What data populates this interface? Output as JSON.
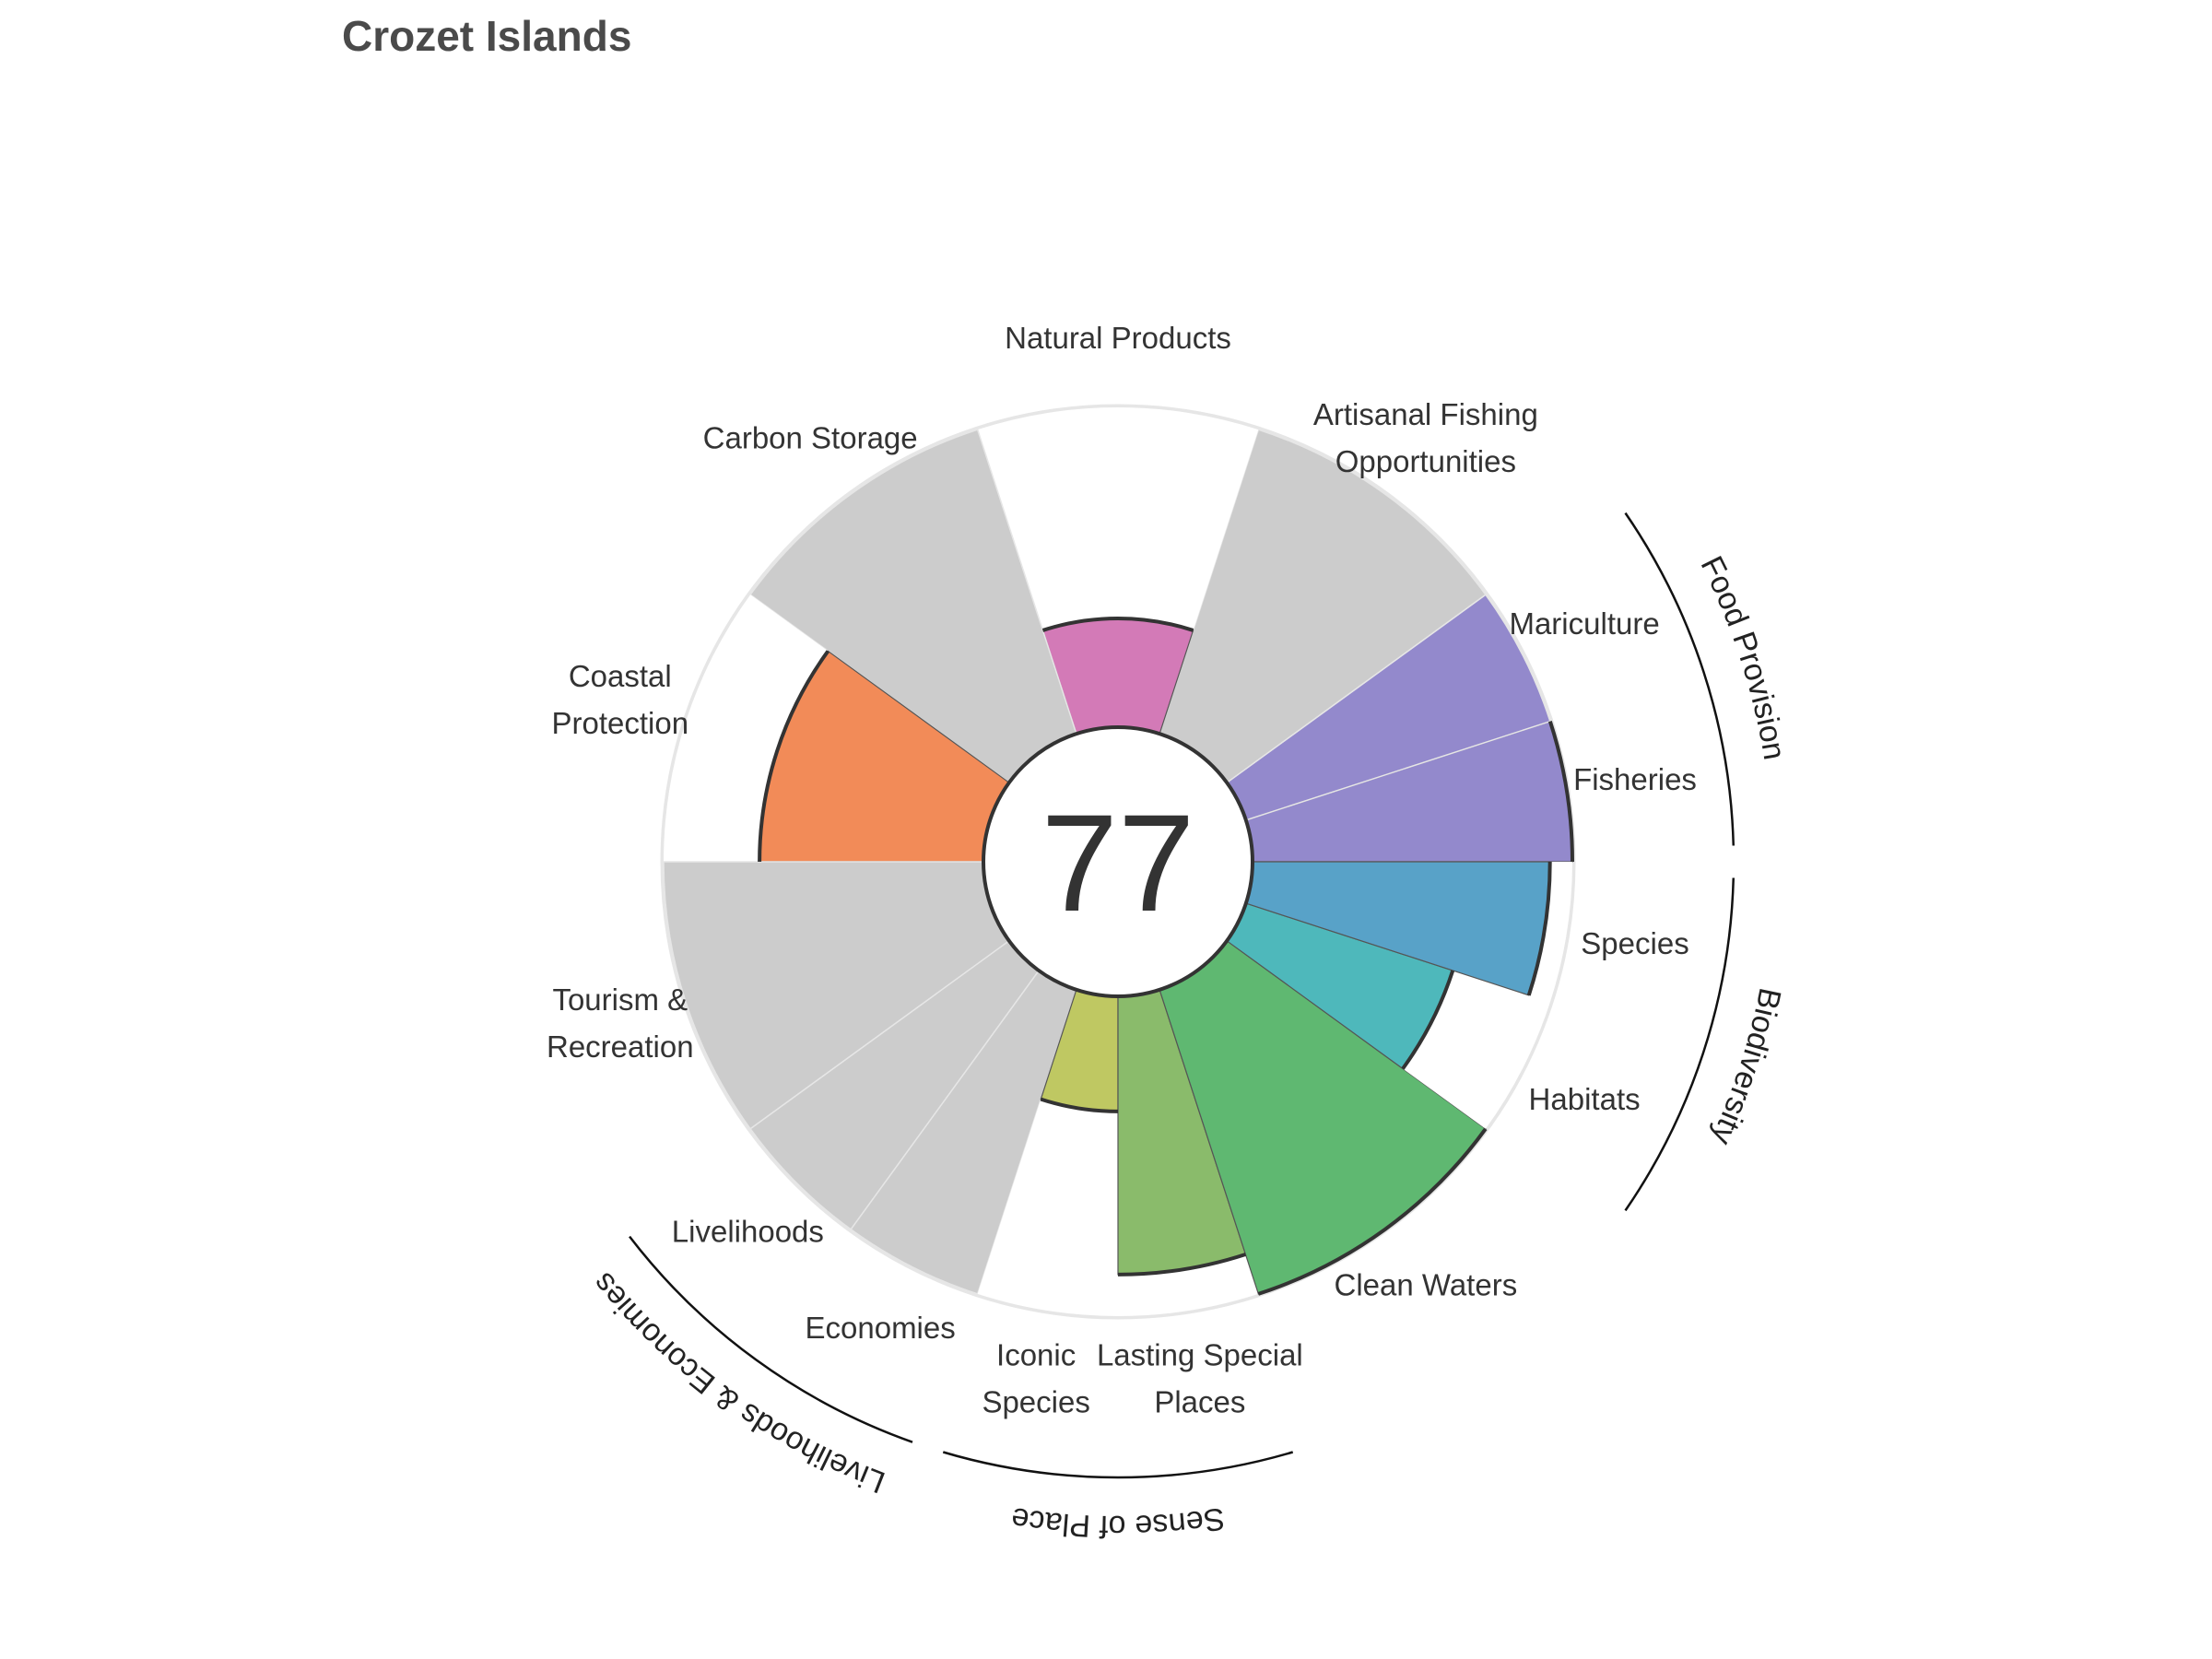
{
  "chart_data": {
    "type": "polar-bar",
    "title": "Crozet Islands",
    "score": "77",
    "rlim": [
      0,
      100
    ],
    "goals": [
      {
        "label": "Fisheries",
        "lines": [
          "Fisheries"
        ],
        "value": 100,
        "weight": 0.5,
        "color": "#9389cc",
        "na": false
      },
      {
        "label": "Mariculture",
        "lines": [
          "Mariculture"
        ],
        "value": null,
        "weight": 0.5,
        "color": "#9389cc",
        "na": true
      },
      {
        "label": "Artisanal Fishing Opportunities",
        "lines": [
          "Artisanal Fishing",
          "Opportunities"
        ],
        "value": null,
        "weight": 1,
        "color": "#cccccc",
        "na": true
      },
      {
        "label": "Natural Products",
        "lines": [
          "Natural Products"
        ],
        "value": 34,
        "weight": 1,
        "color": "#d37ab7",
        "na": false
      },
      {
        "label": "Carbon Storage",
        "lines": [
          "Carbon Storage"
        ],
        "value": null,
        "weight": 1,
        "color": "#cccccc",
        "na": true
      },
      {
        "label": "Coastal Protection",
        "lines": [
          "Coastal",
          "Protection"
        ],
        "value": 70,
        "weight": 1,
        "color": "#f28b58",
        "na": false
      },
      {
        "label": "Tourism & Recreation",
        "lines": [
          "Tourism &",
          "Recreation"
        ],
        "value": null,
        "weight": 1,
        "color": "#cccccc",
        "na": true
      },
      {
        "label": "Livelihoods",
        "lines": [
          "Livelihoods"
        ],
        "value": null,
        "weight": 0.5,
        "color": "#cccccc",
        "na": true
      },
      {
        "label": "Economies",
        "lines": [
          "Economies"
        ],
        "value": null,
        "weight": 0.5,
        "color": "#cccccc",
        "na": true
      },
      {
        "label": "Iconic Species",
        "lines": [
          "Iconic",
          "Species"
        ],
        "value": 36,
        "weight": 0.5,
        "color": "#bfc862",
        "na": false
      },
      {
        "label": "Lasting Special Places",
        "lines": [
          "Lasting Special",
          "Places"
        ],
        "value": 87,
        "weight": 0.5,
        "color": "#8abb6b",
        "na": false
      },
      {
        "label": "Clean Waters",
        "lines": [
          "Clean Waters"
        ],
        "value": 100,
        "weight": 1,
        "color": "#5fb871",
        "na": false
      },
      {
        "label": "Habitats",
        "lines": [
          "Habitats"
        ],
        "value": 68,
        "weight": 0.5,
        "color": "#4eb8bb",
        "na": false
      },
      {
        "label": "Species",
        "lines": [
          "Species"
        ],
        "value": 93,
        "weight": 0.5,
        "color": "#58a2c8",
        "na": false
      }
    ],
    "groups": [
      {
        "label": "Food Provision",
        "members": [
          0,
          1
        ]
      },
      {
        "label": "Biodiversity",
        "members": [
          12,
          13
        ]
      },
      {
        "label": "Sense of Place",
        "members": [
          9,
          10
        ]
      },
      {
        "label": "Livelihoods & Economies",
        "members": [
          7,
          8
        ]
      }
    ]
  }
}
